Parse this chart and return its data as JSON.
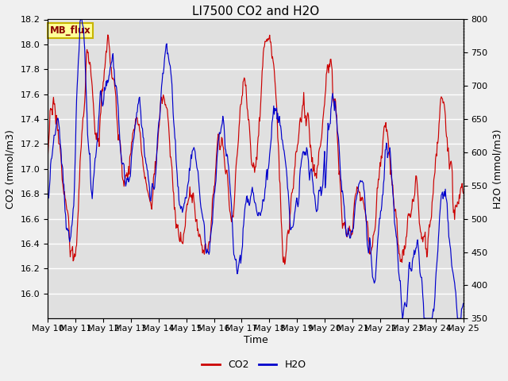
{
  "title": "LI7500 CO2 and H2O",
  "xlabel": "Time",
  "ylabel_left": "CO2 (mmol/m3)",
  "ylabel_right": "H2O (mmol/m3)",
  "co2_ylim": [
    15.8,
    18.2
  ],
  "h2o_ylim": [
    350,
    800
  ],
  "co2_yticks": [
    16.0,
    16.2,
    16.4,
    16.6,
    16.8,
    17.0,
    17.2,
    17.4,
    17.6,
    17.8,
    18.0,
    18.2
  ],
  "h2o_yticks": [
    350,
    400,
    450,
    500,
    550,
    600,
    650,
    700,
    750,
    800
  ],
  "xtick_labels": [
    "May 10",
    "May 11",
    "May 12",
    "May 13",
    "May 14",
    "May 15",
    "May 16",
    "May 17",
    "May 18",
    "May 19",
    "May 20",
    "May 21",
    "May 22",
    "May 23",
    "May 24",
    "May 25"
  ],
  "co2_color": "#cc0000",
  "h2o_color": "#0000cc",
  "figure_bg": "#f0f0f0",
  "plot_bg": "#e0e0e0",
  "annotation_text": "MB_flux",
  "annotation_bg": "#ffff99",
  "annotation_border": "#c8b400",
  "title_fontsize": 11,
  "axis_label_fontsize": 9,
  "tick_fontsize": 8
}
